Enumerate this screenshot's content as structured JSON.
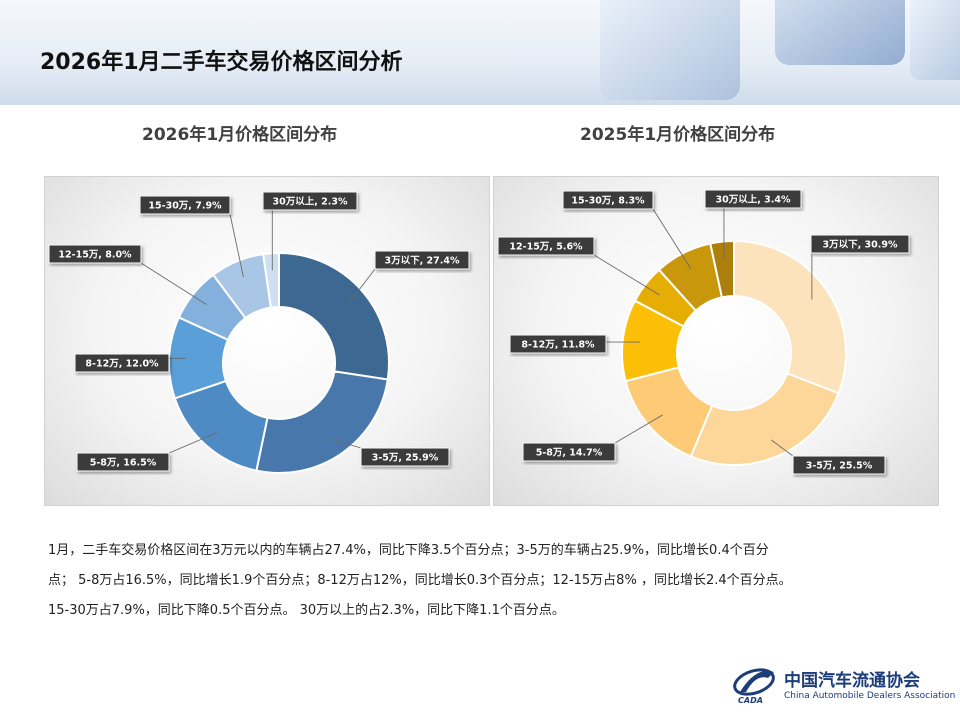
{
  "page": {
    "title": "2026年1月二手车交易价格区间分析",
    "summary": [
      "1月，二手车交易价格区间在3万元以内的车辆占27.4%，同比下降3.5个百分点；3-5万的车辆占25.9%，同比增长0.4个百分",
      "点； 5-8万占16.5%，同比增长1.9个百分点；8-12万占12%，同比增长0.3个百分点；12-15万占8% ，同比增长2.4个百分点。",
      "15-30万占7.9%，同比下降0.5个百分点。 30万以上的占2.3%，同比下降1.1个百分点。"
    ]
  },
  "logo": {
    "name_cn": "中国汽车流通协会",
    "name_en": "China Automobile Dealers Association",
    "abbr": "CADA",
    "color": "#1d3d7a"
  },
  "chart_data": [
    {
      "type": "pie",
      "variant": "donut",
      "title": "2026年1月价格区间分布",
      "categories": [
        "3万以下",
        "3-5万",
        "5-8万",
        "8-12万",
        "12-15万",
        "15-30万",
        "30万以上"
      ],
      "values": [
        27.4,
        25.9,
        16.5,
        12.0,
        8.0,
        7.9,
        2.3
      ],
      "data_labels": [
        "3万以下, 27.4%",
        "3-5万, 25.9%",
        "5-8万, 16.5%",
        "8-12万, 12.0%",
        "12-15万, 8.0%",
        "15-30万, 7.9%",
        "30万以上, 2.3%"
      ],
      "colors": [
        "#3c6892",
        "#4878ab",
        "#4e8ac4",
        "#5a9fd8",
        "#83b0dc",
        "#a9c6e6",
        "#cfdff1"
      ],
      "start": "12 o'clock",
      "direction": "clockwise"
    },
    {
      "type": "pie",
      "variant": "donut",
      "title": "2025年1月价格区间分布",
      "categories": [
        "3万以下",
        "3-5万",
        "5-8万",
        "8-12万",
        "12-15万",
        "15-30万",
        "30万以上"
      ],
      "values": [
        30.9,
        25.5,
        14.7,
        11.8,
        5.6,
        8.3,
        3.4
      ],
      "data_labels": [
        "3万以下, 30.9%",
        "3-5万, 25.5%",
        "5-8万, 14.7%",
        "8-12万, 11.8%",
        "12-15万, 5.6%",
        "15-30万, 8.3%",
        "30万以上, 3.4%"
      ],
      "colors": [
        "#fde3bc",
        "#fdd69a",
        "#fdcb76",
        "#fcbf07",
        "#e6ad05",
        "#c8970b",
        "#ad7f0c"
      ],
      "start": "12 o'clock",
      "direction": "clockwise"
    }
  ]
}
